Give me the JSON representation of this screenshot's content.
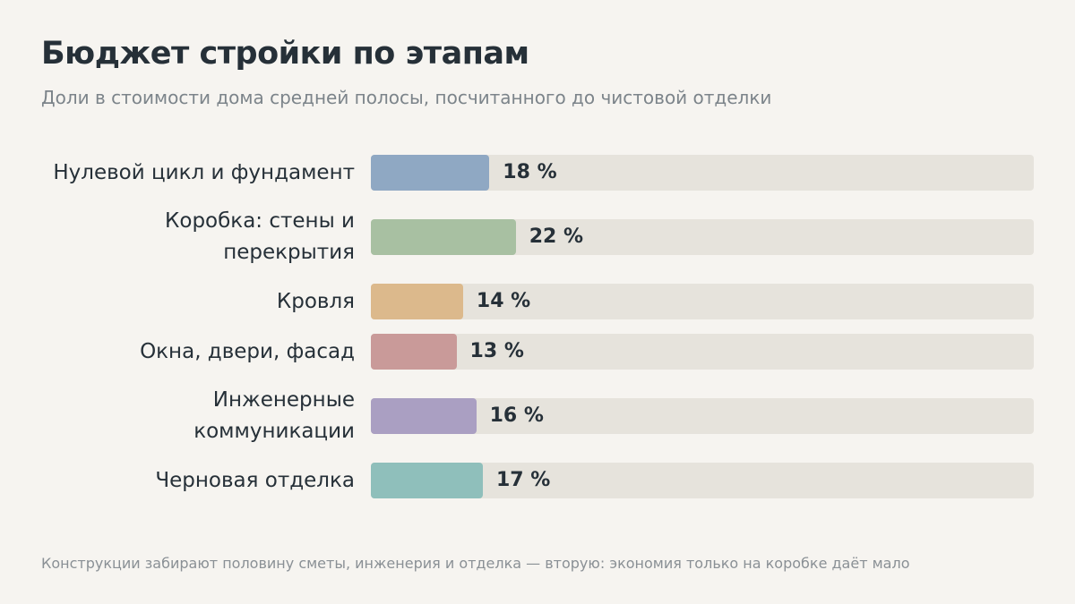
{
  "header": {
    "title": "Бюджет стройки по этапам",
    "subtitle": "Доли в стоимости дома средней полосы, посчитанного до чистовой отделки"
  },
  "footer": {
    "note": "Конструкции забирают половину сметы, инженерия и отделка — вторую: экономия только на коробке даёт мало"
  },
  "chart_data": {
    "type": "bar",
    "orientation": "horizontal",
    "categories": [
      "Нулевой цикл и фундамент",
      "Коробка: стены и перекрытия",
      "Кровля",
      "Окна, двери, фасад",
      "Инженерные коммуникации",
      "Черновая отделка"
    ],
    "values": [
      18,
      22,
      14,
      13,
      16,
      17
    ],
    "value_labels": [
      "18 %",
      "22 %",
      "14 %",
      "13 %",
      "16 %",
      "17 %"
    ],
    "colors": [
      "#8fa8c3",
      "#a8c0a2",
      "#dcb98c",
      "#c99a99",
      "#aa9fc2",
      "#8fbfbb"
    ],
    "track_color": "#e6e3dc",
    "xlim": [
      0,
      100
    ],
    "grid": false,
    "legend": "none"
  }
}
